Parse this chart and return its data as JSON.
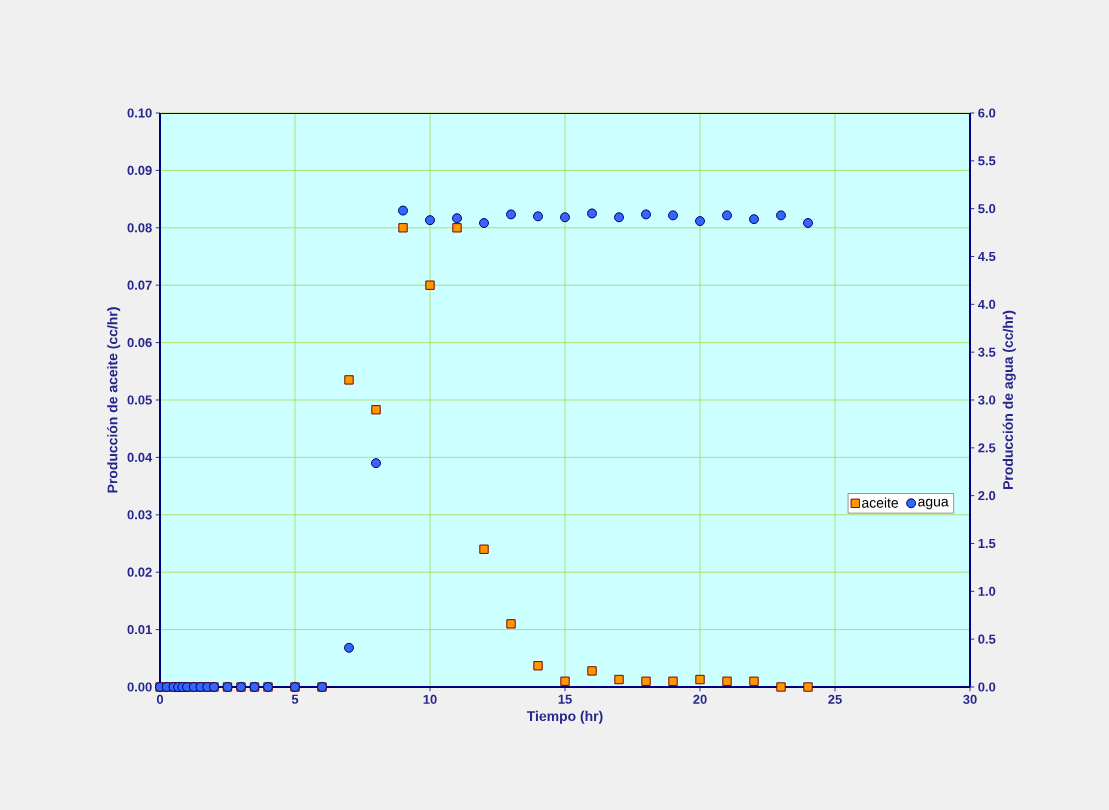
{
  "chart_data": {
    "type": "scatter",
    "xlabel": "Tiempo (hr)",
    "ylabel": "Producción de aceite (cc/hr)",
    "y2label": "Producción de agua (cc/hr)",
    "x": [
      0,
      0.25,
      0.5,
      0.67,
      0.83,
      1,
      1.25,
      1.5,
      1.75,
      2,
      2.5,
      3,
      3.5,
      4,
      5,
      6,
      7,
      8,
      9,
      10,
      11,
      12,
      13,
      14,
      15,
      16,
      17,
      18,
      19,
      20,
      21,
      22,
      23,
      24
    ],
    "series": [
      {
        "name": "aceite",
        "color": "#ff9900",
        "marker": "square",
        "values": [
          0,
          0,
          0,
          0,
          0,
          0,
          0,
          0,
          0,
          0,
          0,
          0,
          0,
          0,
          0,
          0,
          0.0535,
          0.0483,
          0.08,
          0.07,
          0.08,
          0.024,
          0.011,
          0.0037,
          0.001,
          0.0028,
          0.0013,
          0.001,
          0.001,
          0.0013,
          0.001,
          0.001,
          0,
          0
        ]
      },
      {
        "name": "agua",
        "color": "#3366ff",
        "marker": "circle",
        "axis": "y2",
        "values": [
          0,
          0,
          0,
          0,
          0,
          0,
          0,
          0,
          0,
          0,
          0,
          0,
          0,
          0,
          0,
          0,
          0.41,
          2.34,
          4.98,
          4.88,
          4.9,
          4.85,
          4.94,
          4.92,
          4.91,
          4.95,
          4.91,
          4.94,
          4.93,
          4.87,
          4.93,
          4.89,
          4.93,
          4.85
        ]
      }
    ],
    "xlim": [
      0,
      30
    ],
    "xticks": [
      0,
      5,
      10,
      15,
      20,
      25,
      30
    ],
    "ylim": [
      0,
      0.1
    ],
    "yticks": [
      {
        "value": 0,
        "label": "0.00"
      },
      {
        "value": 0.01,
        "label": "0.01"
      },
      {
        "value": 0.02,
        "label": "0.02"
      },
      {
        "value": 0.03,
        "label": "0.03"
      },
      {
        "value": 0.04,
        "label": "0.04"
      },
      {
        "value": 0.05,
        "label": "0.05"
      },
      {
        "value": 0.06,
        "label": "0.06"
      },
      {
        "value": 0.07,
        "label": "0.07"
      },
      {
        "value": 0.08,
        "label": "0.08"
      },
      {
        "value": 0.09,
        "label": "0.09"
      },
      {
        "value": 0.1,
        "label": "0.10"
      }
    ],
    "y2lim": [
      0,
      6
    ],
    "y2ticks": [
      {
        "value": 0,
        "label": "0.0"
      },
      {
        "value": 0.5,
        "label": "0.5"
      },
      {
        "value": 1,
        "label": "1.0"
      },
      {
        "value": 1.5,
        "label": "1.5"
      },
      {
        "value": 2,
        "label": "2.0"
      },
      {
        "value": 2.5,
        "label": "2.5"
      },
      {
        "value": 3,
        "label": "3.0"
      },
      {
        "value": 3.5,
        "label": "3.5"
      },
      {
        "value": 4,
        "label": "4.0"
      },
      {
        "value": 4.5,
        "label": "4.5"
      },
      {
        "value": 5,
        "label": "5.0"
      },
      {
        "value": 5.5,
        "label": "5.5"
      },
      {
        "value": 6,
        "label": "6.0"
      }
    ],
    "grid": true,
    "legend": "right"
  }
}
